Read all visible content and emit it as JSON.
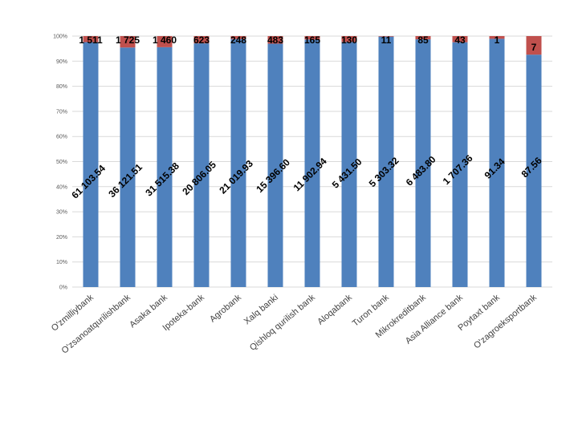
{
  "chart_data": {
    "type": "bar",
    "stacked": "percent",
    "title": "",
    "xlabel": "",
    "ylabel": "",
    "ylim": [
      0,
      100
    ],
    "yticks": [
      "0%",
      "10%",
      "20%",
      "30%",
      "40%",
      "50%",
      "60%",
      "70%",
      "80%",
      "90%",
      "100%"
    ],
    "grid": true,
    "legend": "none",
    "categories": [
      "O'zmilliybank",
      "O'zsanoatqurilishbank",
      "Asaka bank",
      "Ipoteka-bank",
      "Agrobank",
      "Xalq banki",
      "Qishloq qurilish bank",
      "Aloqabank",
      "Turon bank",
      "Mikrokreditbank",
      "Asia Alliance bank",
      "Poytaxt bank",
      "O'zagroeksportbank"
    ],
    "series": [
      {
        "color": "#4f81bd",
        "values": [
          61103.54,
          36121.51,
          31515.38,
          20806.05,
          21019.93,
          15396.6,
          11902.94,
          5431.5,
          5303.32,
          6483.8,
          1707.36,
          91.34,
          87.56
        ],
        "labels": [
          "61 103.54",
          "36 121.51",
          "31 515.38",
          "20 806.05",
          "21 019.93",
          "15 396.60",
          "11 902.94",
          "5 431.50",
          "5 303.32",
          "6 483.80",
          "1 707.36",
          "91.34",
          "87.56"
        ]
      },
      {
        "color": "#c0504d",
        "values": [
          1511,
          1725,
          1460,
          623,
          248,
          483,
          165,
          130,
          11,
          85,
          43,
          1,
          7
        ],
        "labels": [
          "1 511",
          "1 725",
          "1 460",
          "623",
          "248",
          "483",
          "165",
          "130",
          "11",
          "85",
          "43",
          "1",
          "7"
        ]
      }
    ]
  }
}
